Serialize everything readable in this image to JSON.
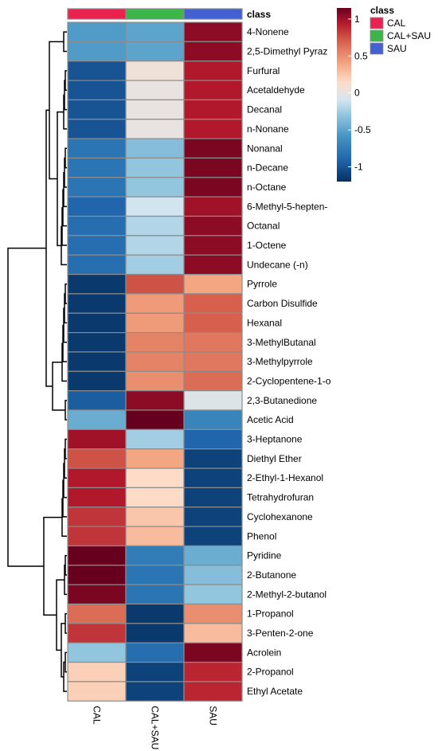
{
  "chart_data": {
    "type": "heatmap",
    "annotation_row_label": "class",
    "columns": [
      "CAL",
      "CAL+SAU",
      "SAU"
    ],
    "class_colors": {
      "CAL": "#e8234f",
      "CAL+SAU": "#3cb54a",
      "SAU": "#4361d1"
    },
    "rows": [
      "4-Nonene",
      "2,5-Dimethyl Pyraz",
      "Furfural",
      "Acetaldehyde",
      "Decanal",
      "n-Nonane",
      "Nonanal",
      "n-Decane",
      "n-Octane",
      "6-Methyl-5-hepten-",
      "Octanal",
      "1-Octene",
      "Undecane (-n)",
      "Pyrrole",
      "Carbon Disulfide",
      "Hexanal",
      "3-MethylButanal",
      "3-Methylpyrrole",
      "2-Cyclopentene-1-o",
      "2,3-Butanedione",
      "Acetic Acid",
      "3-Heptanone",
      "Diethyl Ether",
      "2-Ethyl-1-Hexanol",
      "Tetrahydrofuran",
      "Cyclohexanone",
      "Phenol",
      "Pyridine",
      "2-Butanone",
      "2-Methyl-2-butanol",
      "1-Propanol",
      "3-Penten-2-one",
      "Acrolein",
      "2-Propanol",
      "Ethyl Acetate"
    ],
    "values": [
      [
        -0.55,
        -0.5,
        1.05
      ],
      [
        -0.55,
        -0.5,
        1.05
      ],
      [
        -1.0,
        0.05,
        0.95
      ],
      [
        -1.0,
        0.0,
        0.95
      ],
      [
        -1.0,
        0.0,
        0.95
      ],
      [
        -1.0,
        0.0,
        0.95
      ],
      [
        -0.8,
        -0.35,
        1.1
      ],
      [
        -0.8,
        -0.3,
        1.1
      ],
      [
        -0.8,
        -0.3,
        1.1
      ],
      [
        -0.9,
        -0.1,
        1.0
      ],
      [
        -0.85,
        -0.2,
        1.05
      ],
      [
        -0.85,
        -0.2,
        1.05
      ],
      [
        -0.85,
        -0.25,
        1.05
      ],
      [
        -1.15,
        0.75,
        0.4
      ],
      [
        -1.15,
        0.45,
        0.7
      ],
      [
        -1.15,
        0.45,
        0.7
      ],
      [
        -1.15,
        0.55,
        0.6
      ],
      [
        -1.15,
        0.55,
        0.6
      ],
      [
        -1.15,
        0.5,
        0.65
      ],
      [
        -0.95,
        1.05,
        -0.05
      ],
      [
        -0.45,
        1.15,
        -0.7
      ],
      [
        1.0,
        -0.25,
        -0.9
      ],
      [
        0.75,
        0.4,
        -1.1
      ],
      [
        0.95,
        0.15,
        -1.1
      ],
      [
        0.95,
        0.15,
        -1.1
      ],
      [
        0.85,
        0.25,
        -1.1
      ],
      [
        0.85,
        0.3,
        -1.1
      ],
      [
        1.15,
        -0.75,
        -0.45
      ],
      [
        1.15,
        -0.8,
        -0.35
      ],
      [
        1.1,
        -0.8,
        -0.3
      ],
      [
        0.65,
        -1.15,
        0.5
      ],
      [
        0.85,
        -1.15,
        0.3
      ],
      [
        -0.3,
        -0.85,
        1.1
      ],
      [
        0.2,
        -1.1,
        0.9
      ],
      [
        0.2,
        -1.1,
        0.9
      ]
    ],
    "color_scale": {
      "ticks": [
        1,
        0.5,
        0,
        -0.5,
        -1
      ],
      "tick_labels": [
        "1",
        "0.5",
        "0",
        "-0.5",
        "-1"
      ],
      "min": -1.2,
      "max": 1.15,
      "stops": [
        {
          "value": -1.2,
          "color": "#053061"
        },
        {
          "value": -0.9,
          "color": "#2166ac"
        },
        {
          "value": -0.6,
          "color": "#4393c3"
        },
        {
          "value": -0.3,
          "color": "#92c5de"
        },
        {
          "value": -0.1,
          "color": "#d1e5f0"
        },
        {
          "value": 0.0,
          "color": "#e8e3e0"
        },
        {
          "value": 0.15,
          "color": "#fddbc7"
        },
        {
          "value": 0.4,
          "color": "#f4a582"
        },
        {
          "value": 0.7,
          "color": "#d6604d"
        },
        {
          "value": 0.95,
          "color": "#b2182b"
        },
        {
          "value": 1.15,
          "color": "#67001f"
        }
      ]
    },
    "legend": {
      "title": "class",
      "entries": [
        "CAL",
        "CAL+SAU",
        "SAU"
      ],
      "placement": "top-right"
    }
  }
}
